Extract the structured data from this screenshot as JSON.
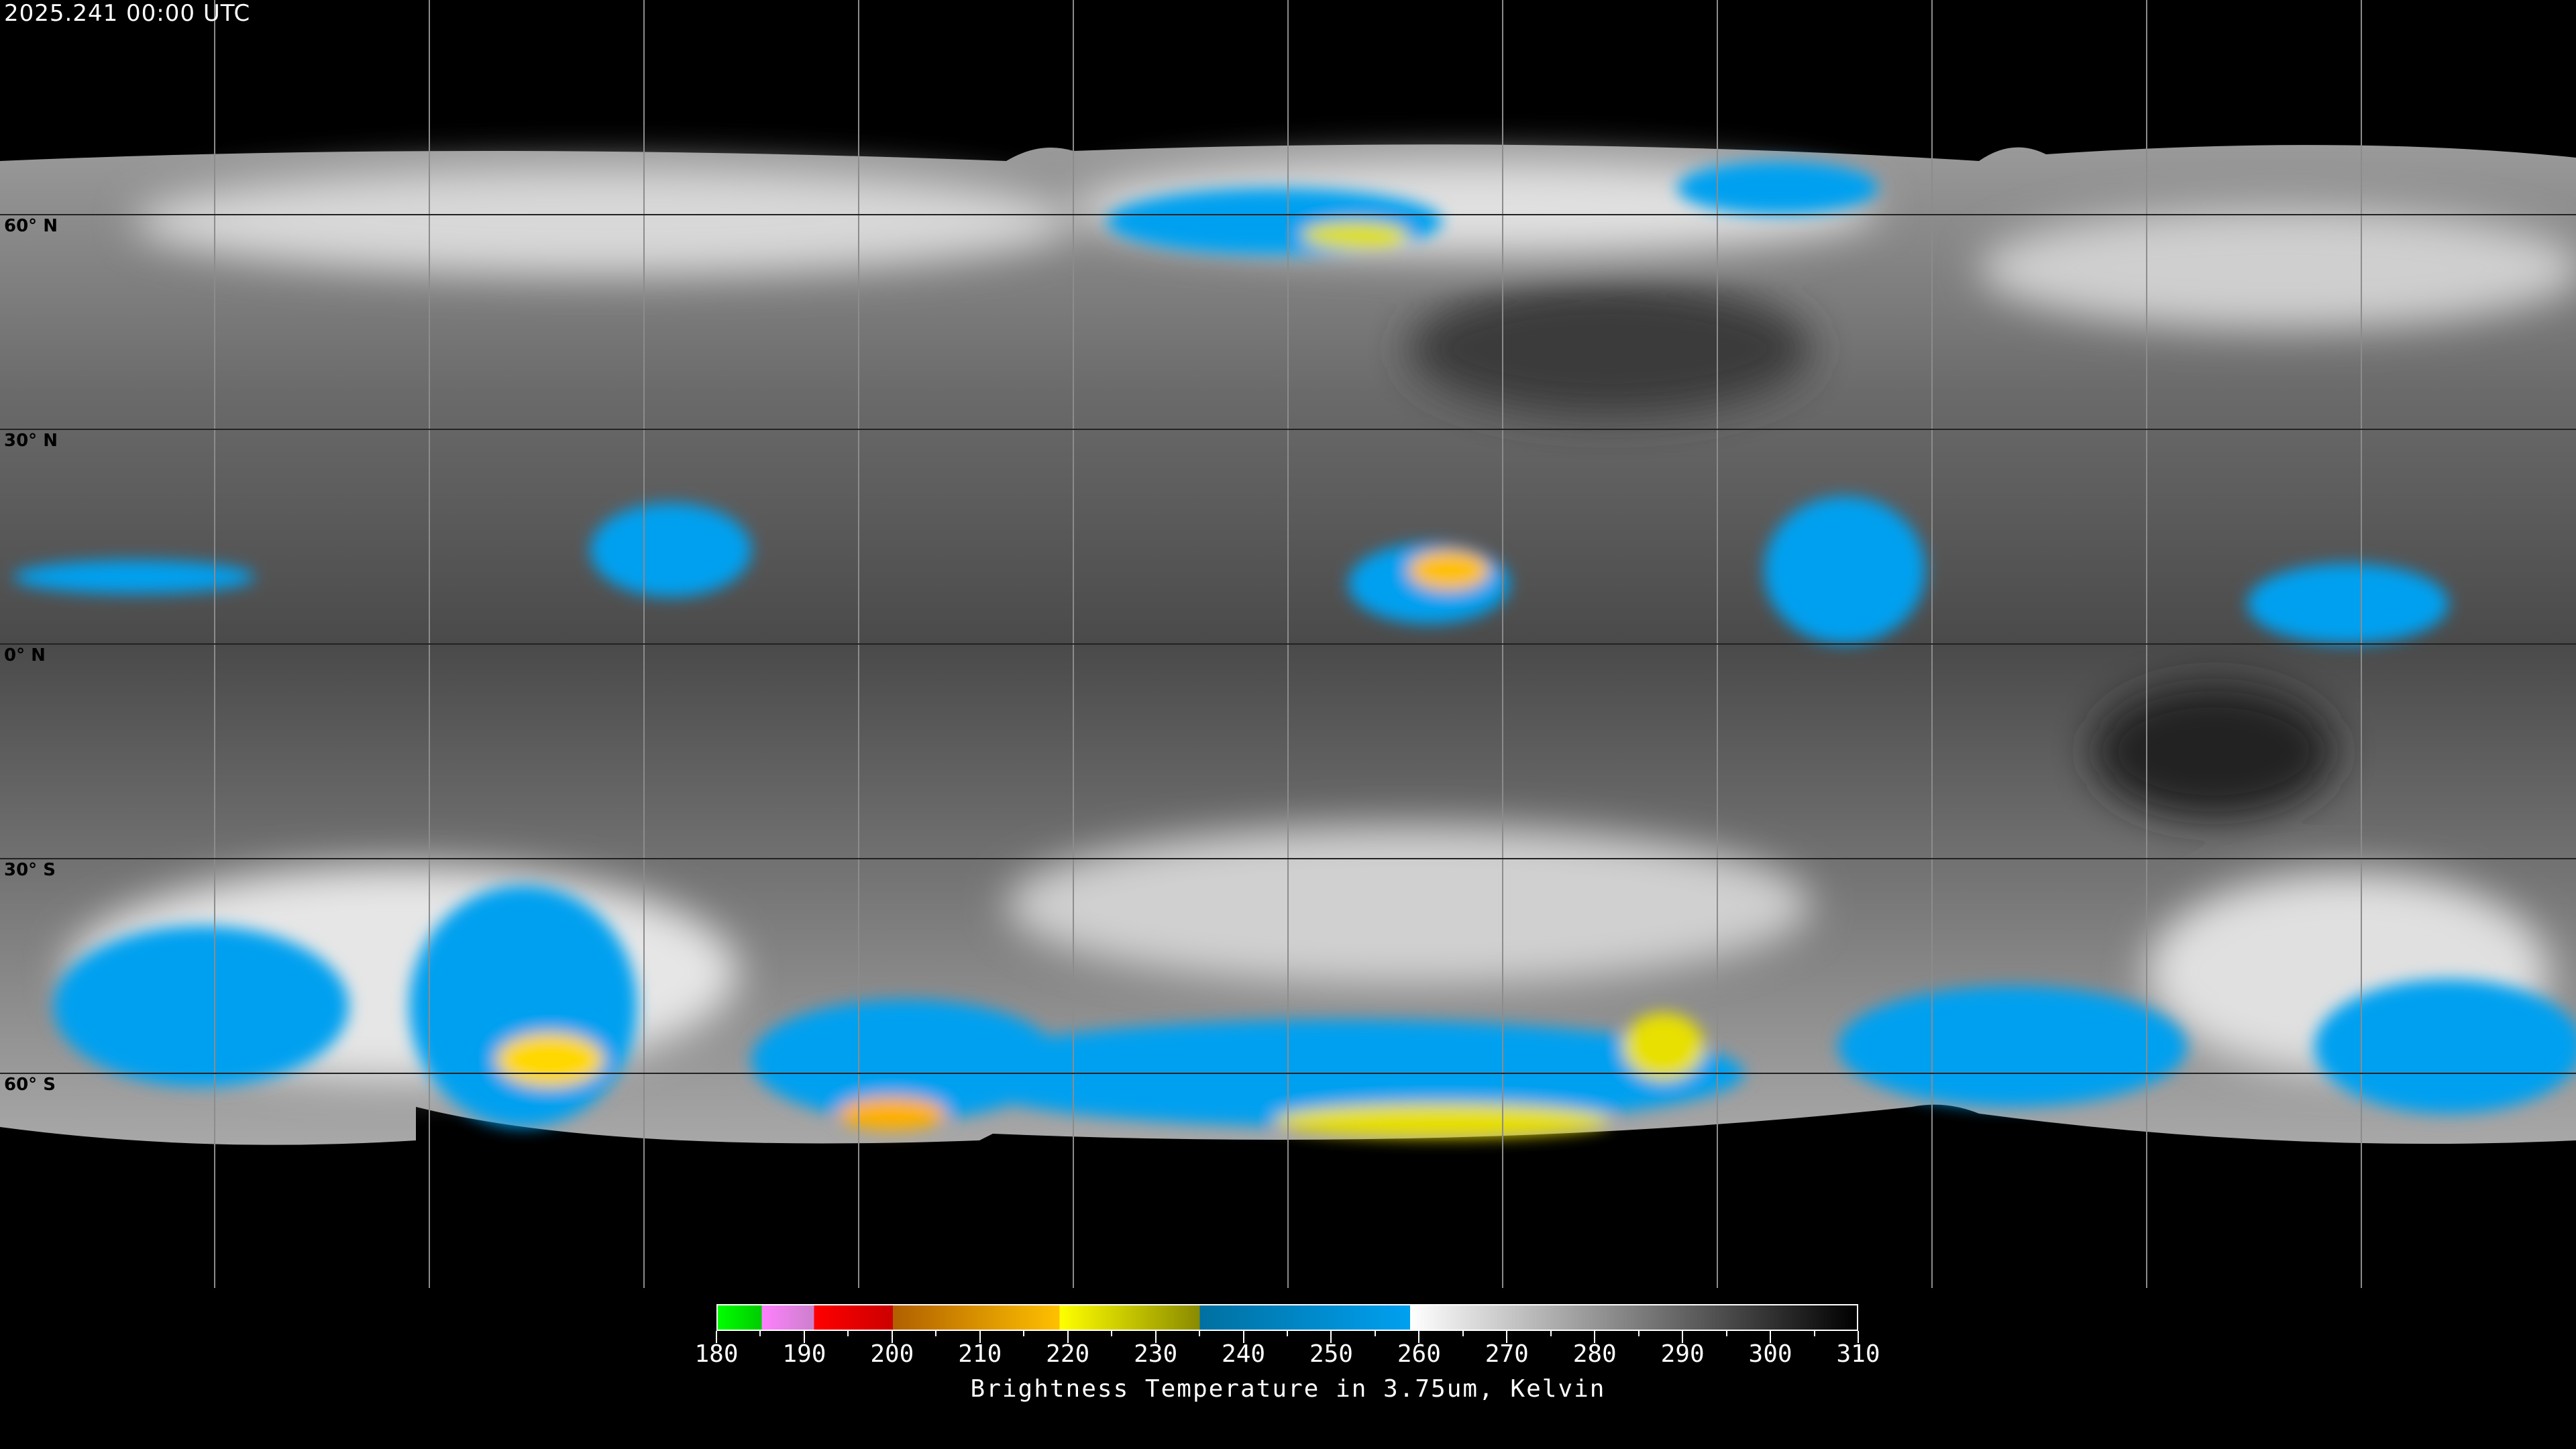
{
  "timestamp": "2025.241 00:00 UTC",
  "map": {
    "projection": "equirectangular",
    "grid_spacing_deg": 30,
    "latitude_labels": [
      "60° N",
      "30° N",
      "0° N",
      "30° S",
      "60° S"
    ],
    "grid_color": "#8c8c8c",
    "coastline_color": "#ffffff"
  },
  "colorbar": {
    "title": "Brightness Temperature in 3.75um, Kelvin",
    "min": 180,
    "max": 310,
    "tick_labels": [
      "180",
      "190",
      "200",
      "210",
      "220",
      "230",
      "240",
      "250",
      "260",
      "270",
      "280",
      "290",
      "300",
      "310"
    ],
    "segments": [
      {
        "from": 180,
        "to": 185,
        "colors": [
          "#00ff00",
          "#00cc00"
        ]
      },
      {
        "from": 185,
        "to": 191,
        "colors": [
          "#ff80ff",
          "#cc80cc"
        ]
      },
      {
        "from": 191,
        "to": 200,
        "colors": [
          "#ff0000",
          "#cc0000"
        ]
      },
      {
        "from": 200,
        "to": 219,
        "colors": [
          "#b06000",
          "#ffc000"
        ]
      },
      {
        "from": 219,
        "to": 235,
        "colors": [
          "#ffff00",
          "#8a8a00"
        ]
      },
      {
        "from": 235,
        "to": 259,
        "colors": [
          "#0070a0",
          "#00a0f0"
        ]
      },
      {
        "from": 259,
        "to": 310,
        "colors": [
          "#ffffff",
          "#000000"
        ]
      }
    ]
  }
}
